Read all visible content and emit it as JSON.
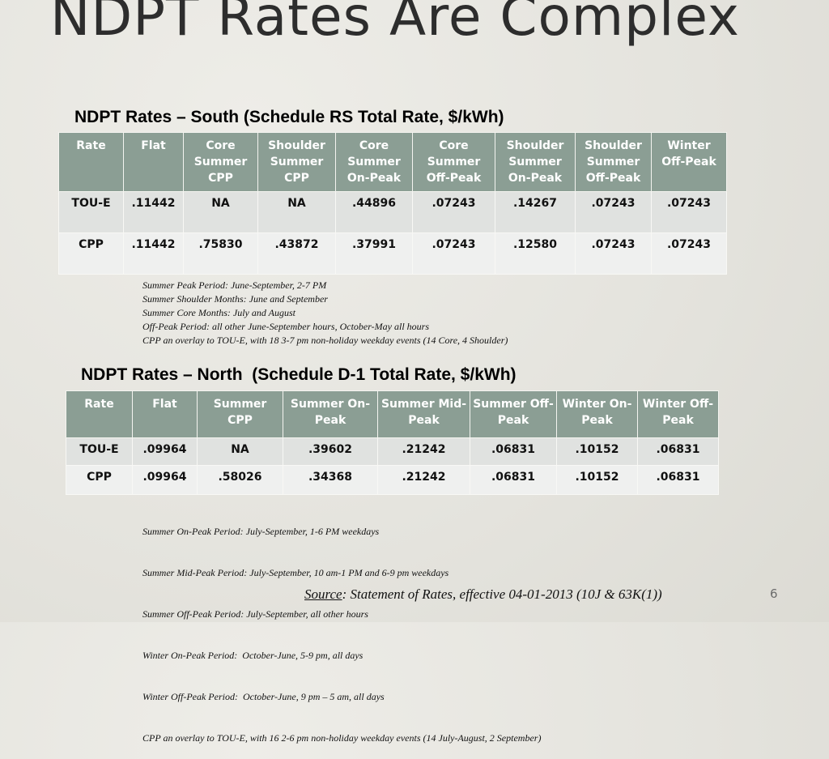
{
  "slide": {
    "title": "NDPT Rates Are Complex",
    "page_number": "6"
  },
  "south": {
    "heading": "NDPT Rates – South (Schedule RS Total Rate, $/kWh)",
    "headers": [
      "Rate",
      "Flat",
      "Core Summer CPP",
      "Shoulder Summer CPP",
      "Core Summer On-Peak",
      "Core Summer Off-Peak",
      "Shoulder Summer On-Peak",
      "Shoulder Summer Off-Peak",
      "Winter Off-Peak"
    ],
    "rows": [
      [
        "TOU-E",
        ".11442",
        "NA",
        "NA",
        ".44896",
        ".07243",
        ".14267",
        ".07243",
        ".07243"
      ],
      [
        "CPP",
        ".11442",
        ".75830",
        ".43872",
        ".37991",
        ".07243",
        ".12580",
        ".07243",
        ".07243"
      ]
    ],
    "notes": [
      "Summer Peak Period: June-September, 2-7 PM",
      "Summer Shoulder Months: June and September",
      "Summer Core Months: July and August",
      "Off-Peak Period: all other June-September hours, October-May all hours",
      "CPP an overlay to TOU-E, with 18 3-7 pm non-holiday weekday events (14 Core, 4 Shoulder)"
    ]
  },
  "north": {
    "heading": "NDPT Rates – North  (Schedule D-1 Total Rate, $/kWh)",
    "headers": [
      "Rate",
      "Flat",
      "Summer CPP",
      "Summer On-Peak",
      "Summer Mid-Peak",
      "Summer Off-Peak",
      "Winter On-Peak",
      "Winter Off-Peak"
    ],
    "rows": [
      [
        "TOU-E",
        ".09964",
        "NA",
        ".39602",
        ".21242",
        ".06831",
        ".10152",
        ".06831"
      ],
      [
        "CPP",
        ".09964",
        ".58026",
        ".34368",
        ".21242",
        ".06831",
        ".10152",
        ".06831"
      ]
    ],
    "notes": [
      "Summer On-Peak Period: July-September, 1-6 PM weekdays",
      "Summer Mid-Peak Period: July-September, 10 am-1 PM and 6-9 pm weekdays",
      "Summer Off-Peak Period: July-September, all other hours",
      "Winter On-Peak Period:  October-June, 5-9 pm, all days",
      "Winter Off-Peak Period:  October-June, 9 pm – 5 am, all days",
      "CPP an overlay to TOU-E, with 16 2-6 pm non-holiday weekday events (14 July-August, 2 September)"
    ]
  },
  "source": {
    "label": "Source",
    "text": ": Statement of Rates, effective 04-01-2013 (10J & 63K(1))"
  }
}
